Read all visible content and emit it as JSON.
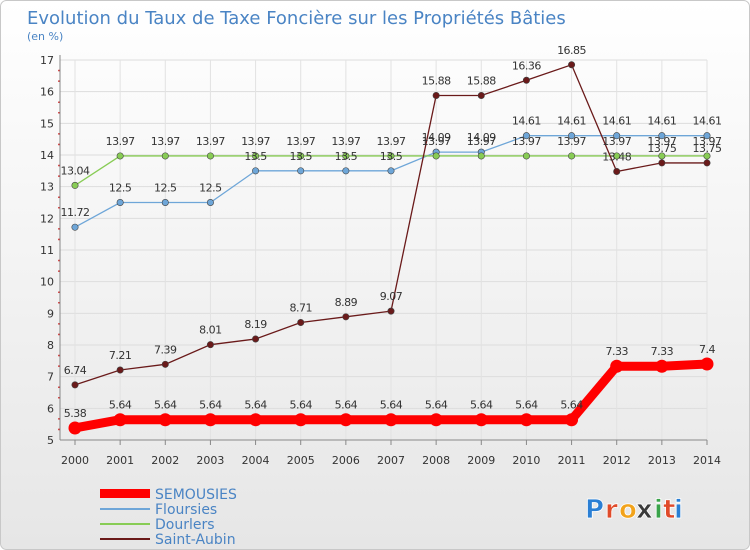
{
  "chart_data": {
    "type": "line",
    "title": "Evolution du Taux de Taxe Foncière sur les Propriétés Bâties",
    "unit_label": "(en %)",
    "x": [
      "2000",
      "2001",
      "2002",
      "2003",
      "2004",
      "2005",
      "2006",
      "2007",
      "2008",
      "2009",
      "2010",
      "2011",
      "2012",
      "2013",
      "2014"
    ],
    "ylim": [
      5,
      17
    ],
    "yticks": [
      "5",
      "6",
      "7",
      "8",
      "9",
      "10",
      "11",
      "12",
      "13",
      "14",
      "15",
      "16",
      "17"
    ],
    "series": [
      {
        "name": "SEMOUSIES",
        "color": "#ff0000",
        "emphasis": true,
        "values": [
          5.38,
          5.64,
          5.64,
          5.64,
          5.64,
          5.64,
          5.64,
          5.64,
          5.64,
          5.64,
          5.64,
          5.64,
          7.33,
          7.33,
          7.4
        ],
        "labels": [
          "5.38",
          "5.64",
          "5.64",
          "5.64",
          "5.64",
          "5.64",
          "5.64",
          "5.64",
          "5.64",
          "5.64",
          "5.64",
          "5.64",
          "7.33",
          "7.33",
          "7.4"
        ]
      },
      {
        "name": "Floursies",
        "color": "#6ea6d8",
        "values": [
          11.72,
          12.5,
          12.5,
          12.5,
          13.5,
          13.5,
          13.5,
          13.5,
          14.09,
          14.09,
          14.61,
          14.61,
          14.61,
          14.61,
          14.61
        ],
        "labels": [
          "11.72",
          "12.5",
          "12.5",
          "12.5",
          "13.5",
          "13.5",
          "13.5",
          "13.5",
          "14.09",
          "14.09",
          "14.61",
          "14.61",
          "14.61",
          "14.61",
          "14.61"
        ]
      },
      {
        "name": "Dourlers",
        "color": "#88cc55",
        "values": [
          13.04,
          13.97,
          13.97,
          13.97,
          13.97,
          13.97,
          13.97,
          13.97,
          13.97,
          13.97,
          13.97,
          13.97,
          13.97,
          13.97,
          13.97
        ],
        "labels": [
          "13.04",
          "13.97",
          "13.97",
          "13.97",
          "13.97",
          "13.97",
          "13.97",
          "13.97",
          "13.97",
          "13.97",
          "13.97",
          "13.97",
          "13.97",
          "13.97",
          "13.97"
        ]
      },
      {
        "name": "Saint-Aubin",
        "color": "#6a1a1a",
        "values": [
          6.74,
          7.21,
          7.39,
          8.01,
          8.19,
          8.71,
          8.89,
          9.07,
          15.88,
          15.88,
          16.36,
          16.85,
          13.48,
          13.75,
          13.75
        ],
        "labels": [
          "6.74",
          "7.21",
          "7.39",
          "8.01",
          "8.19",
          "8.71",
          "8.89",
          "9.07",
          "15.88",
          "15.88",
          "16.36",
          "16.85",
          "13.48",
          "13.75",
          "13.75"
        ]
      }
    ],
    "legend_position": "bottom-left"
  },
  "brand": {
    "letters": [
      "P",
      "r",
      "o",
      "x",
      "i",
      "t",
      "i"
    ],
    "colors": [
      "#2b7fd4",
      "#e04b2a",
      "#f2a31b",
      "#3a3a3a",
      "#3aa34a",
      "#e04b2a",
      "#2b7fd4"
    ]
  }
}
